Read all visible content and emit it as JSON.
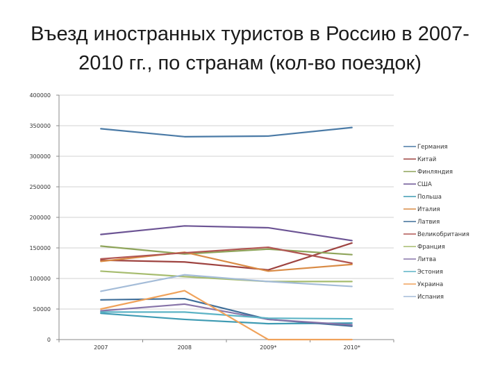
{
  "chart_data": {
    "type": "line",
    "title_lines": [
      "Въезд иностранных туристов в Россию в 2007-",
      "2010 гг., по странам (кол-во поездок)"
    ],
    "categories": [
      "2007",
      "2008",
      "2009*",
      "2010*"
    ],
    "ylim": [
      0,
      400000
    ],
    "yticks": [
      "0",
      "50000",
      "100000",
      "150000",
      "200000",
      "250000",
      "300000",
      "350000",
      "400000"
    ],
    "ytick_values": [
      0,
      50000,
      100000,
      150000,
      200000,
      250000,
      300000,
      350000,
      400000
    ],
    "grid": true,
    "legend_position": "right",
    "series": [
      {
        "name": "Германия",
        "color": "#4a7aa6",
        "values": [
          345000,
          332000,
          333000,
          347000
        ]
      },
      {
        "name": "Китай",
        "color": "#9e4340",
        "values": [
          130000,
          127000,
          114000,
          158000
        ]
      },
      {
        "name": "Финляндия",
        "color": "#8ea45a",
        "values": [
          153000,
          140000,
          148000,
          139000
        ]
      },
      {
        "name": "США",
        "color": "#6c5494",
        "values": [
          172000,
          186000,
          183000,
          162000
        ]
      },
      {
        "name": "Польша",
        "color": "#3f9bb3",
        "values": [
          43000,
          33000,
          26000,
          27000
        ]
      },
      {
        "name": "Италия",
        "color": "#d98b45",
        "values": [
          128000,
          143000,
          112000,
          123000
        ]
      },
      {
        "name": "Латвия",
        "color": "#3f6e99",
        "values": [
          65000,
          67000,
          33000,
          22000
        ]
      },
      {
        "name": "Великобритания",
        "color": "#b05552",
        "values": [
          132000,
          142000,
          151000,
          125000
        ]
      },
      {
        "name": "Франция",
        "color": "#a6bc6e",
        "values": [
          112000,
          103000,
          95000,
          95000
        ]
      },
      {
        "name": "Литва",
        "color": "#8673a8",
        "values": [
          47000,
          58000,
          33000,
          24000
        ]
      },
      {
        "name": "Эстония",
        "color": "#5bb3c5",
        "values": [
          45000,
          45000,
          35000,
          34000
        ]
      },
      {
        "name": "Украина",
        "color": "#f0a25a",
        "values": [
          50000,
          80000,
          0,
          0
        ]
      },
      {
        "name": "Испания",
        "color": "#a4bcd8",
        "values": [
          79000,
          106000,
          95000,
          87000
        ]
      }
    ]
  }
}
